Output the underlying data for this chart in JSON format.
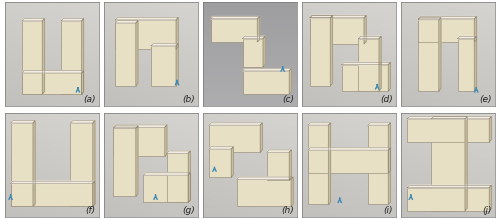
{
  "labels": [
    "(a)",
    "(b)",
    "(c)",
    "(d)",
    "(e)",
    "(f)",
    "(g)",
    "(h)",
    "(i)",
    "(j)"
  ],
  "nrows": 2,
  "ncols": 5,
  "figsize": [
    5.0,
    2.19
  ],
  "dpi": 100,
  "bg_light": "#c8c5be",
  "bg_dark": "#9a9590",
  "block_face": "#e8e0c4",
  "block_top": "#f2ede0",
  "block_side": "#c8bfa0",
  "block_inner": "#a8a098",
  "label_fontsize": 6.5,
  "arrow_color": "#3a8ab5",
  "label_color": "#222222"
}
